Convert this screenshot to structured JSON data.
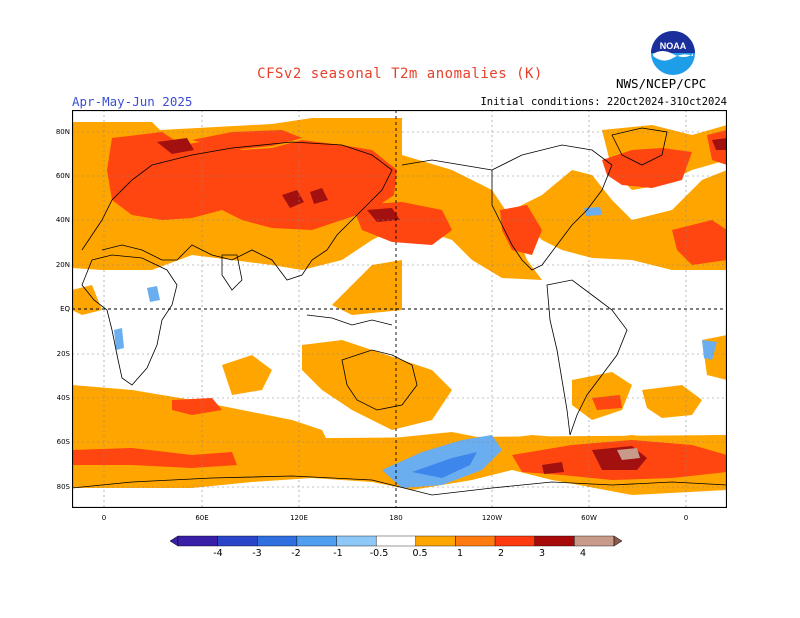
{
  "header": {
    "title": "CFSv2 seasonal T2m anomalies (K)",
    "period": "Apr-May-Jun 2025",
    "initial_conditions": "Initial conditions: 22Oct2024-31Oct2024",
    "agency": "NWS/NCEP/CPC",
    "logo_text": "NOAA"
  },
  "axes": {
    "lat_labels": [
      "80N",
      "60N",
      "40N",
      "20N",
      "EQ",
      "20S",
      "40S",
      "60S",
      "80S"
    ],
    "lon_labels": [
      "0",
      "60E",
      "120E",
      "180",
      "120W",
      "60W",
      "0"
    ]
  },
  "colorbar": {
    "labels": [
      "-4",
      "-3",
      "-2",
      "-1",
      "-0.5",
      "0.5",
      "1",
      "2",
      "3",
      "4"
    ],
    "colors": [
      "#3a1fa8",
      "#2a45c8",
      "#2f6fe0",
      "#4f9ef0",
      "#8ec8f8",
      "#ffffff",
      "#ffa500",
      "#ff7a10",
      "#ff3a10",
      "#a80a0a",
      "#c89a8a",
      "#8a5a4a"
    ]
  },
  "colors": {
    "ocean_orange": "#ffa500",
    "red": "#ff4510",
    "dark_red": "#a31010",
    "light_blue": "#6aaef0",
    "blue": "#3c86ec"
  }
}
